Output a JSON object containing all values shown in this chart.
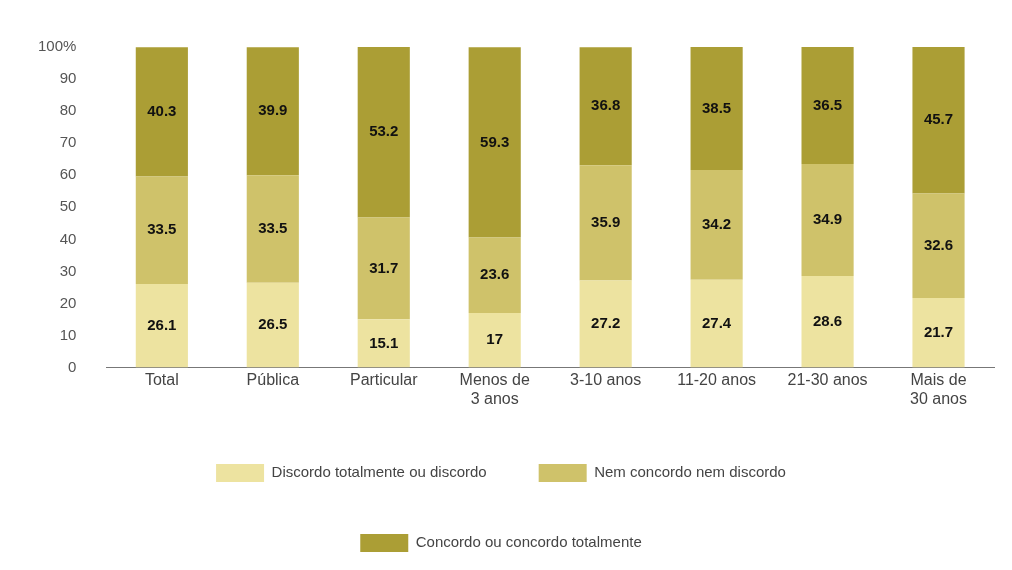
{
  "chart_data": {
    "type": "bar",
    "stacked": true,
    "categories": [
      "Total",
      "Pública",
      "Particular",
      "Menos de 3 anos",
      "3-10 anos",
      "11-20 anos",
      "21-30 anos",
      "Mais de 30 anos"
    ],
    "series": [
      {
        "name": "Discordo totalmente ou discordo",
        "color": "#ede3a0",
        "values": [
          26.1,
          26.5,
          15.1,
          17,
          27.2,
          27.4,
          28.6,
          21.7
        ]
      },
      {
        "name": "Nem concordo nem discordo",
        "color": "#cfc26a",
        "values": [
          33.5,
          33.5,
          31.7,
          23.6,
          35.9,
          34.2,
          34.9,
          32.6
        ]
      },
      {
        "name": "Concordo ou concordo totalmente",
        "color": "#ab9e35",
        "values": [
          40.3,
          39.9,
          53.2,
          59.3,
          36.8,
          38.5,
          36.5,
          45.7
        ]
      }
    ],
    "ylim": [
      0,
      100
    ],
    "yticks": [
      0,
      10,
      20,
      30,
      40,
      50,
      60,
      70,
      80,
      90,
      {
        "value": 100,
        "label": "100%"
      }
    ],
    "grid": false,
    "legend": "bottom",
    "data_labels": true
  }
}
